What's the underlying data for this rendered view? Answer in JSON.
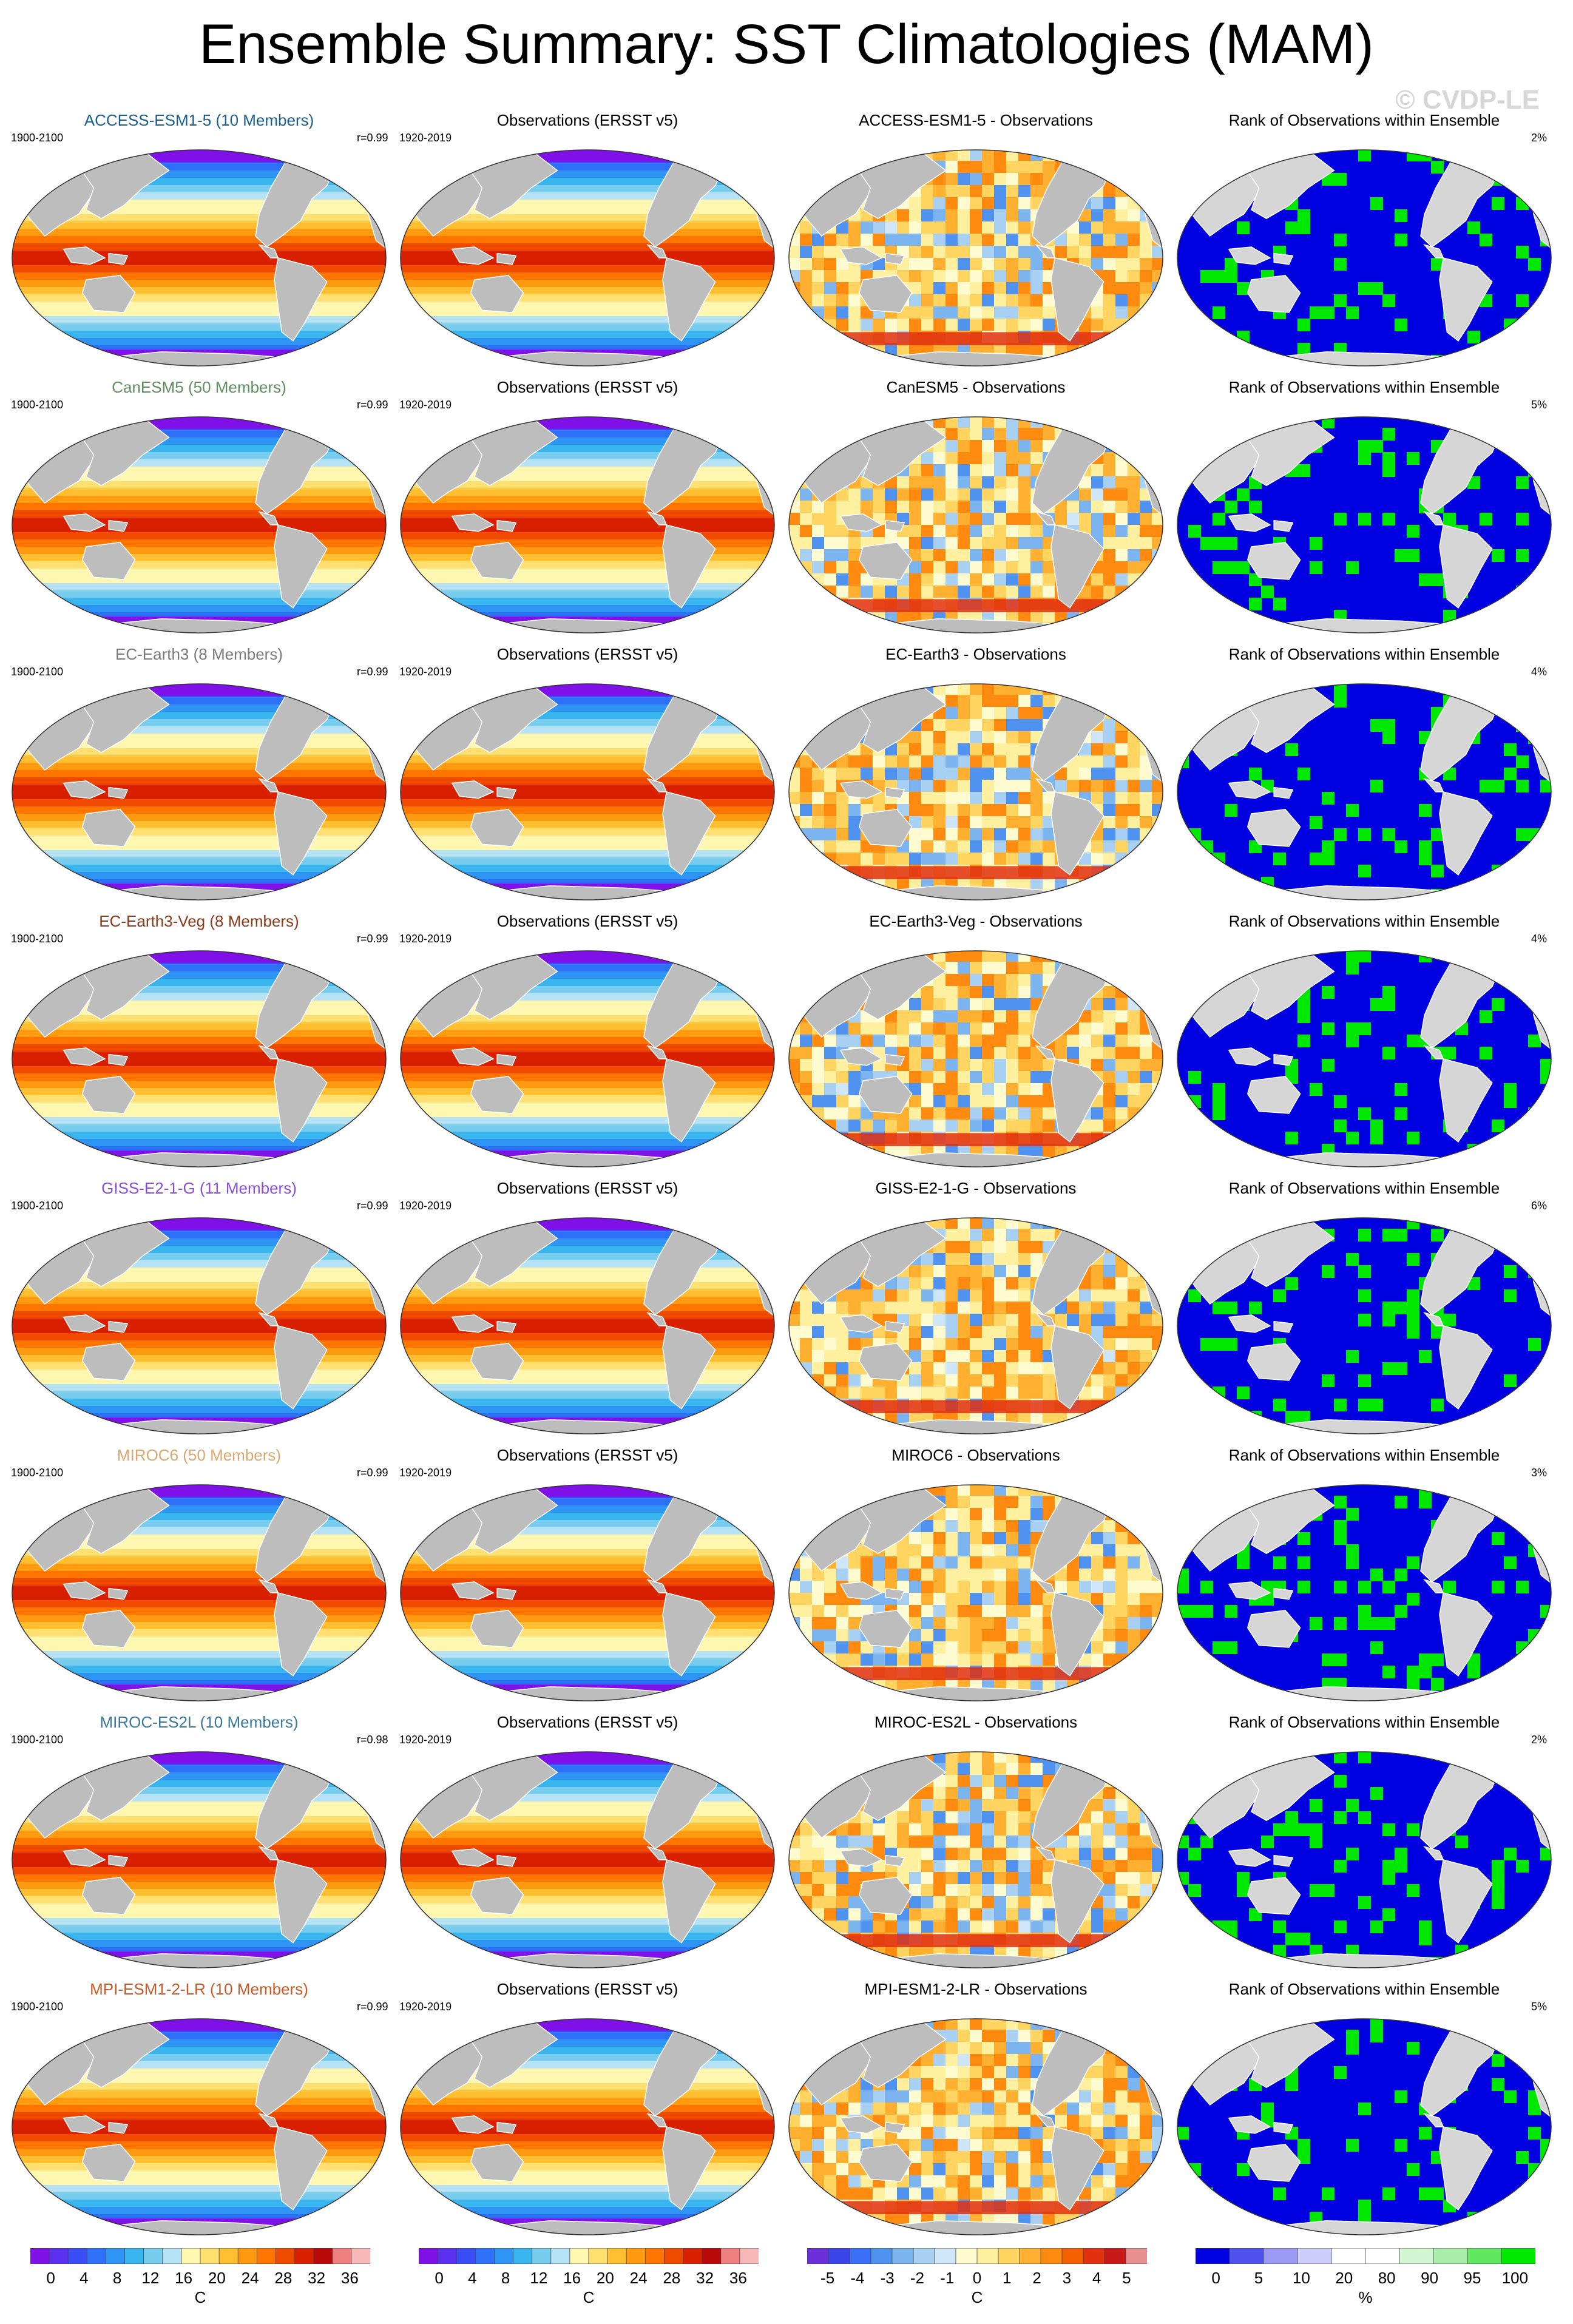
{
  "title": "Ensemble Summary: SST Climatologies (MAM)",
  "copyright": "© CVDP-LE",
  "obs_title": "Observations (ERSST v5)",
  "obs_period": "1920-2019",
  "model_period": "1900-2100",
  "rank_title": "Rank of Observations within Ensemble",
  "rows": [
    {
      "model": "ACCESS-ESM1-5 (10 Members)",
      "model_color": "#1a5f8e",
      "r": "r=0.99",
      "diff_title": "ACCESS-ESM1-5 - Observations",
      "rank_pct": "2%"
    },
    {
      "model": "CanESM5 (50 Members)",
      "model_color": "#5f8f5f",
      "r": "r=0.99",
      "diff_title": "CanESM5 - Observations",
      "rank_pct": "5%"
    },
    {
      "model": "EC-Earth3 (8 Members)",
      "model_color": "#7a7a7a",
      "r": "r=0.99",
      "diff_title": "EC-Earth3 - Observations",
      "rank_pct": "4%"
    },
    {
      "model": "EC-Earth3-Veg (8 Members)",
      "model_color": "#8b3a1a",
      "r": "r=0.99",
      "diff_title": "EC-Earth3-Veg - Observations",
      "rank_pct": "4%"
    },
    {
      "model": "GISS-E2-1-G (11 Members)",
      "model_color": "#8a4fd8",
      "r": "r=0.99",
      "diff_title": "GISS-E2-1-G - Observations",
      "rank_pct": "6%"
    },
    {
      "model": "MIROC6 (50 Members)",
      "model_color": "#d8a870",
      "r": "r=0.99",
      "diff_title": "MIROC6 - Observations",
      "rank_pct": "3%"
    },
    {
      "model": "MIROC-ES2L (10 Members)",
      "model_color": "#3a7a9a",
      "r": "r=0.98",
      "diff_title": "MIROC-ES2L - Observations",
      "rank_pct": "2%"
    },
    {
      "model": "MPI-ESM1-2-LR (10 Members)",
      "model_color": "#c85a28",
      "r": "r=0.99",
      "diff_title": "MPI-ESM1-2-LR - Observations",
      "rank_pct": "5%"
    }
  ],
  "colorbars": [
    {
      "ticks": [
        "0",
        "4",
        "8",
        "12",
        "16",
        "20",
        "24",
        "28",
        "32",
        "36"
      ],
      "unit": "C",
      "colors": [
        "#7f10e8",
        "#5a2ff0",
        "#3a4cf5",
        "#2e70f8",
        "#2f95f5",
        "#38b4ee",
        "#78cdef",
        "#b5e2f5",
        "#fff6b0",
        "#ffdf70",
        "#ffbf30",
        "#ff9a10",
        "#ff7500",
        "#f04a00",
        "#d82000",
        "#b80808",
        "#f08080",
        "#f8b8b8"
      ]
    },
    {
      "ticks": [
        "0",
        "4",
        "8",
        "12",
        "16",
        "20",
        "24",
        "28",
        "32",
        "36"
      ],
      "unit": "C",
      "colors": [
        "#7f10e8",
        "#5a2ff0",
        "#3a4cf5",
        "#2e70f8",
        "#2f95f5",
        "#38b4ee",
        "#78cdef",
        "#b5e2f5",
        "#fff6b0",
        "#ffdf70",
        "#ffbf30",
        "#ff9a10",
        "#ff7500",
        "#f04a00",
        "#d82000",
        "#b80808",
        "#f08080",
        "#f8b8b8"
      ]
    },
    {
      "ticks": [
        "-5",
        "-4",
        "-3",
        "-2",
        "-1",
        "0",
        "1",
        "2",
        "3",
        "4",
        "5"
      ],
      "unit": "C",
      "colors": [
        "#6a2fd8",
        "#3a44e8",
        "#3a6ef5",
        "#4f92f0",
        "#7bb4ef",
        "#a8d0f3",
        "#cfe6f8",
        "#fffbd0",
        "#fff0a0",
        "#ffd460",
        "#ffb030",
        "#ff8a10",
        "#f56000",
        "#e03010",
        "#c81818",
        "#e89090"
      ]
    },
    {
      "ticks": [
        "0",
        "5",
        "10",
        "20",
        "80",
        "90",
        "95",
        "100"
      ],
      "unit": "%",
      "colors": [
        "#0000e0",
        "#5050ec",
        "#9a9af4",
        "#cccdf8",
        "#ffffff",
        "#ffffff",
        "#d2f5d2",
        "#a8eda8",
        "#60e860",
        "#00e800"
      ]
    }
  ]
}
